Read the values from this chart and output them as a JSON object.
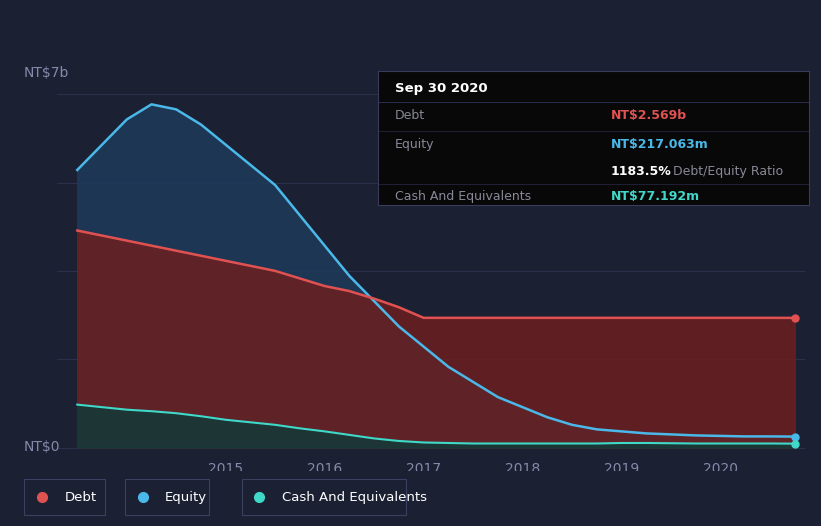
{
  "background_color": "#1c2033",
  "ylabel_top": "NT$7b",
  "ylabel_bottom": "NT$0",
  "x_labels": [
    "2015",
    "2016",
    "2017",
    "2018",
    "2019",
    "2020"
  ],
  "x_tick_positions": [
    2015.0,
    2016.0,
    2017.0,
    2018.0,
    2019.0,
    2020.0
  ],
  "debt_color": "#e05252",
  "equity_color": "#4ab8e8",
  "cash_color": "#40d8c8",
  "debt_fill": "#6b1f1f",
  "equity_fill": "#1e3a5a",
  "cash_fill": "#123a38",
  "info_date": "Sep 30 2020",
  "info_debt_label": "Debt",
  "info_debt_value": "NT$2.569b",
  "info_equity_label": "Equity",
  "info_equity_value": "NT$217.063m",
  "info_ratio": "1183.5%",
  "info_ratio_label": " Debt/Equity Ratio",
  "info_cash_label": "Cash And Equivalents",
  "info_cash_value": "NT$77.192m",
  "legend_labels": [
    "Debt",
    "Equity",
    "Cash And Equivalents"
  ],
  "x_data": [
    2013.5,
    2014.0,
    2014.25,
    2014.5,
    2014.75,
    2015.0,
    2015.25,
    2015.5,
    2015.75,
    2016.0,
    2016.25,
    2016.5,
    2016.75,
    2017.0,
    2017.25,
    2017.5,
    2017.75,
    2018.0,
    2018.25,
    2018.5,
    2018.75,
    2019.0,
    2019.25,
    2019.5,
    2019.75,
    2020.0,
    2020.25,
    2020.5,
    2020.75
  ],
  "equity_data": [
    5.5,
    6.5,
    6.8,
    6.7,
    6.4,
    6.0,
    5.6,
    5.2,
    4.6,
    4.0,
    3.4,
    2.9,
    2.4,
    2.0,
    1.6,
    1.3,
    1.0,
    0.8,
    0.6,
    0.45,
    0.36,
    0.32,
    0.28,
    0.26,
    0.24,
    0.23,
    0.22,
    0.22,
    0.217
  ],
  "debt_data": [
    4.3,
    4.1,
    4.0,
    3.9,
    3.8,
    3.7,
    3.6,
    3.5,
    3.35,
    3.2,
    3.1,
    2.95,
    2.78,
    2.57,
    2.57,
    2.57,
    2.57,
    2.57,
    2.57,
    2.57,
    2.57,
    2.57,
    2.57,
    2.57,
    2.57,
    2.57,
    2.57,
    2.57,
    2.569
  ],
  "cash_data": [
    0.85,
    0.75,
    0.72,
    0.68,
    0.62,
    0.55,
    0.5,
    0.45,
    0.38,
    0.32,
    0.25,
    0.18,
    0.13,
    0.1,
    0.09,
    0.08,
    0.08,
    0.08,
    0.08,
    0.08,
    0.08,
    0.09,
    0.09,
    0.085,
    0.08,
    0.08,
    0.08,
    0.08,
    0.077
  ],
  "ylim_max": 7.2,
  "xlim_min": 2013.3,
  "xlim_max": 2020.85,
  "grid_color": "#2e3450",
  "tick_label_color": "#8888aa"
}
